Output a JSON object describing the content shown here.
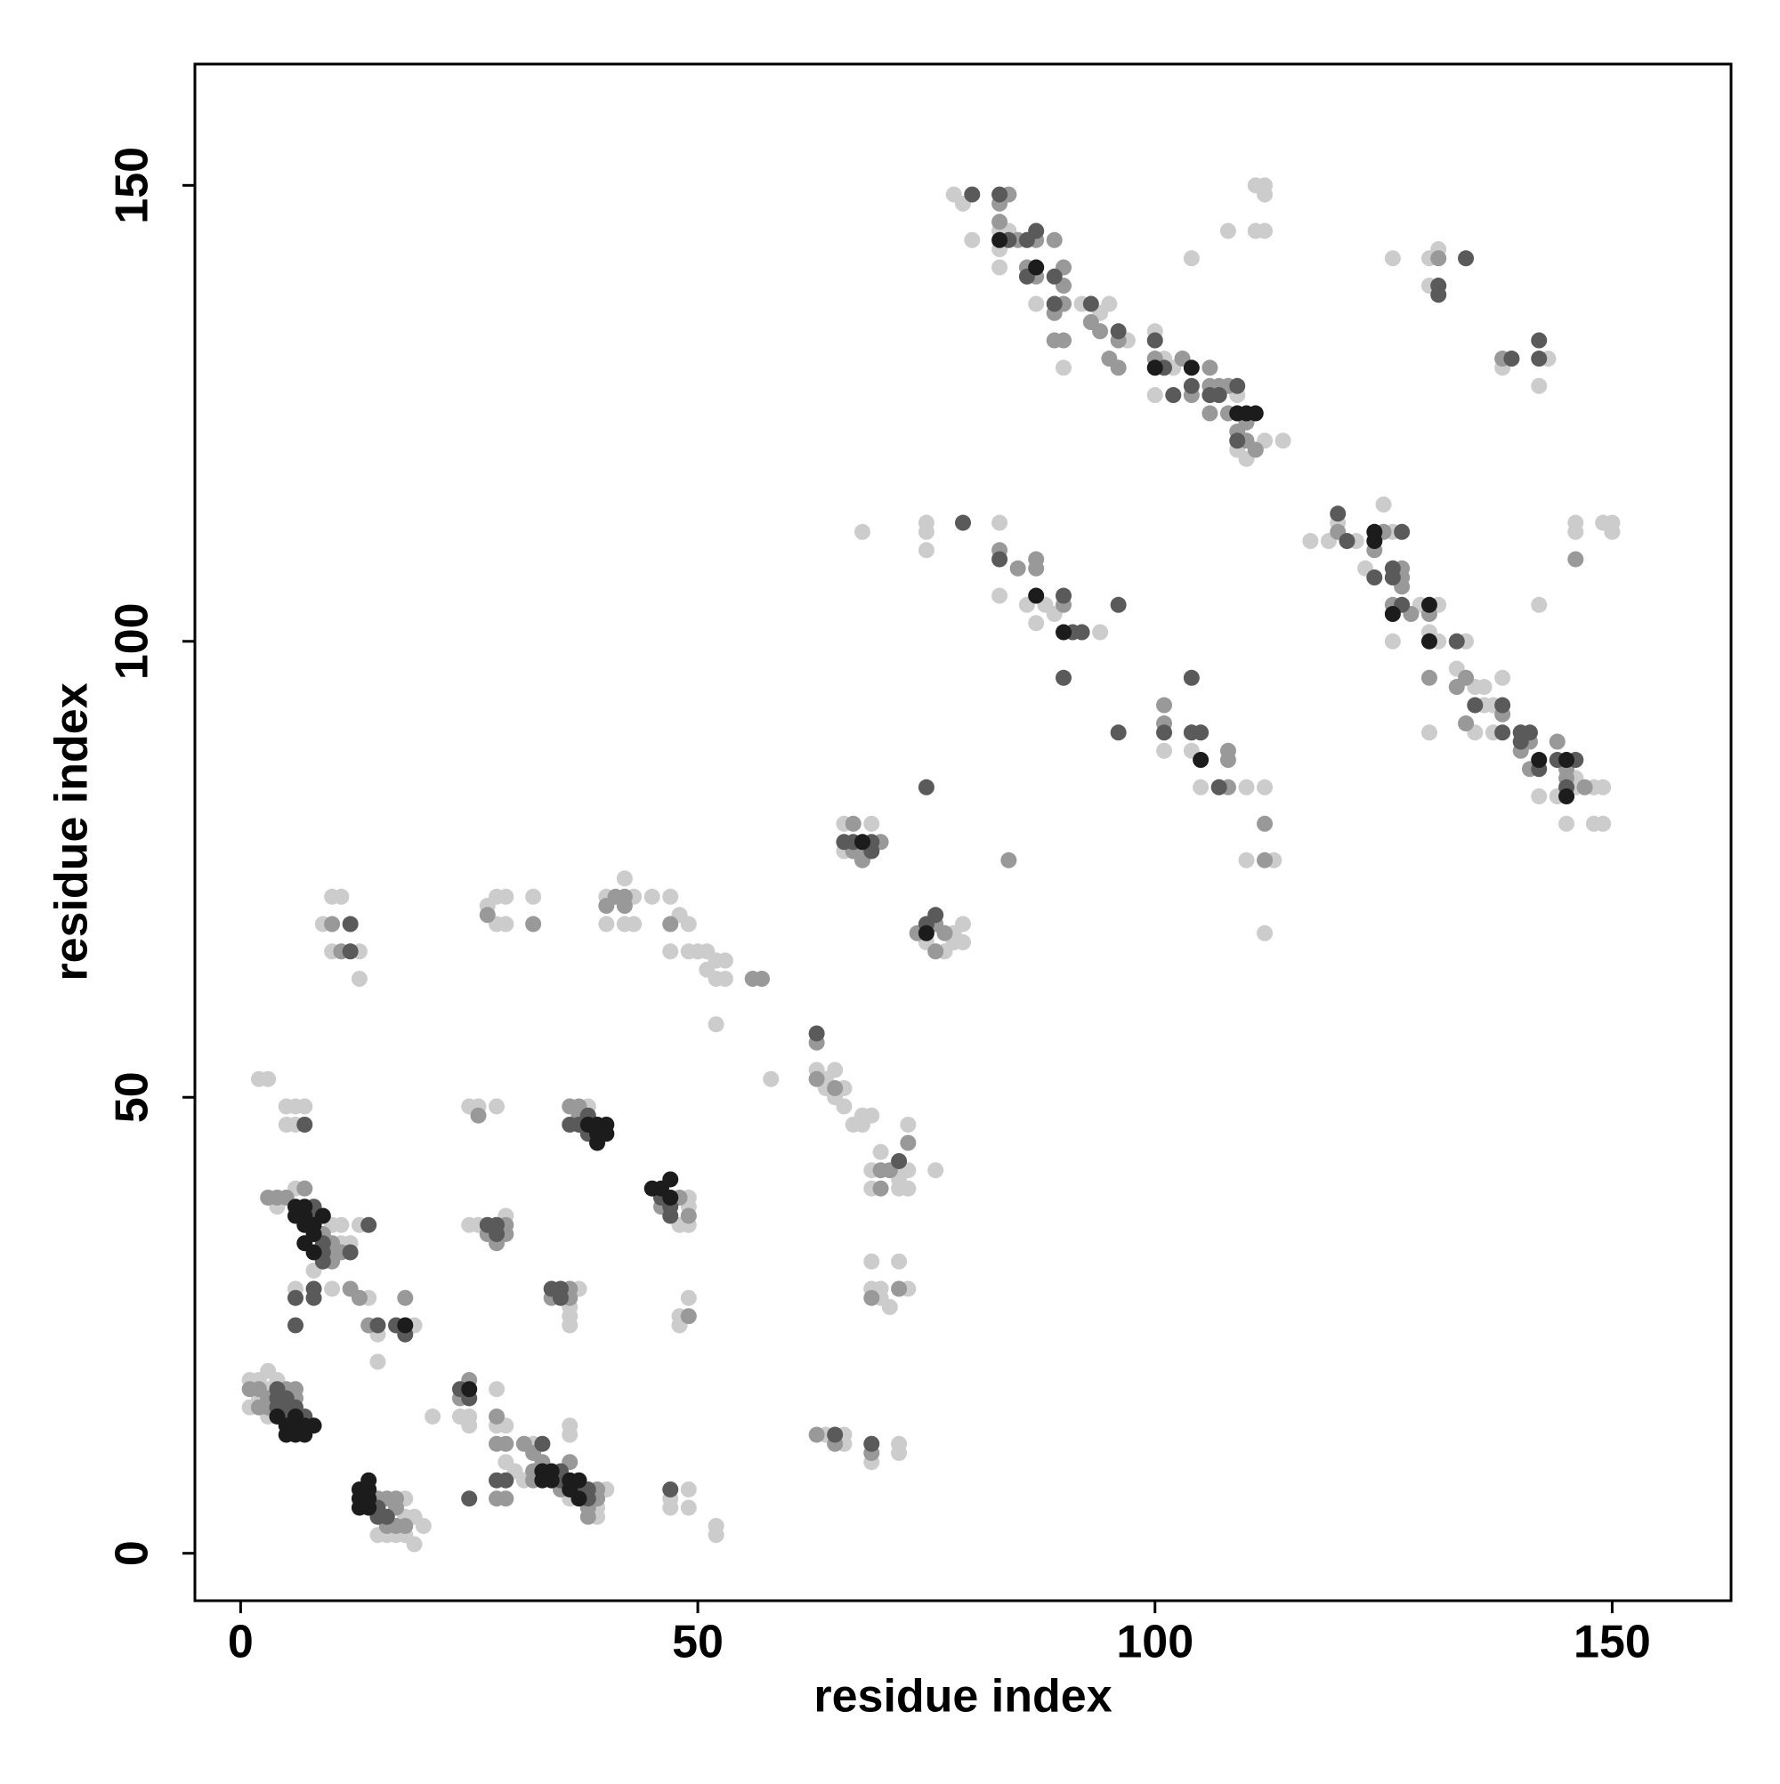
{
  "chart_data": {
    "type": "scatter",
    "xlabel": "residue index",
    "ylabel": "residue index",
    "xlim": [
      -5,
      163
    ],
    "ylim": [
      -5.2,
      163.3
    ],
    "xticks": [
      0,
      50,
      100,
      150
    ],
    "yticks": [
      0,
      50,
      100,
      150
    ],
    "series": [
      {
        "color": "#cccccc",
        "x": [
          78,
          79,
          80,
          83,
          84,
          83,
          83,
          87,
          92,
          94,
          95,
          97,
          90,
          100,
          101,
          102,
          100,
          109,
          110,
          112,
          109,
          114,
          108,
          111,
          112,
          111,
          112,
          112,
          104,
          126,
          130,
          131,
          130,
          138,
          143,
          142,
          117,
          119,
          120,
          122,
          123,
          126,
          125,
          126,
          129,
          131,
          130,
          131,
          130,
          134,
          133,
          135,
          136,
          135,
          136,
          137,
          137,
          138,
          146,
          146,
          144,
          142,
          148,
          149,
          149,
          148,
          145,
          146,
          146,
          150,
          150,
          149,
          142,
          68,
          75,
          75,
          75,
          83,
          83,
          86,
          87,
          88,
          94,
          89,
          101,
          104,
          105,
          110,
          112,
          110,
          113,
          112,
          66,
          69,
          66,
          79,
          78,
          75,
          78,
          79,
          77,
          10,
          11,
          9,
          13,
          10,
          13,
          27,
          28,
          29,
          32,
          28,
          29,
          40,
          43,
          42,
          40,
          42,
          43,
          45,
          47,
          48,
          49,
          47,
          49,
          50,
          51,
          52,
          53,
          51,
          52,
          53,
          52,
          63,
          64,
          65,
          64,
          66,
          65,
          66,
          68,
          68,
          69,
          73,
          69,
          72,
          73,
          69,
          72,
          73,
          72,
          58,
          76,
          67,
          70,
          69,
          72,
          69,
          70,
          73,
          70,
          71,
          64,
          66,
          66,
          72,
          72,
          69,
          2,
          3,
          5,
          6,
          7,
          5,
          6,
          25,
          26,
          28,
          38,
          49,
          49,
          48,
          49,
          6,
          4,
          10,
          11,
          11,
          12,
          13,
          8,
          25,
          26,
          29,
          6,
          10,
          14,
          15,
          19,
          15,
          37,
          36,
          36,
          36,
          49,
          48,
          48,
          1,
          2,
          3,
          4,
          3,
          2,
          1,
          3,
          28,
          24,
          25,
          25,
          28,
          29,
          21,
          29,
          32,
          36,
          36,
          40,
          36,
          39,
          39,
          30,
          31,
          47,
          49,
          47,
          49,
          52,
          52,
          18,
          19,
          20,
          15,
          16,
          17,
          18,
          19,
          18
        ],
        "y": [
          149,
          148,
          144,
          145,
          145,
          143,
          141,
          137,
          137,
          136,
          137,
          133,
          130,
          134,
          131,
          130,
          127,
          127,
          120,
          122,
          121,
          122,
          145,
          145,
          145,
          150,
          150,
          149,
          142,
          142,
          142,
          143,
          139,
          130,
          131,
          128,
          111,
          111,
          113,
          111,
          108,
          112,
          115,
          100,
          104,
          104,
          101,
          100,
          90,
          100,
          97,
          95,
          93,
          90,
          95,
          93,
          90,
          96,
          85,
          84,
          83,
          83,
          84,
          84,
          80,
          80,
          80,
          113,
          112,
          113,
          112,
          113,
          104,
          112,
          113,
          112,
          110,
          113,
          105,
          104,
          102,
          104,
          101,
          103,
          88,
          88,
          84,
          84,
          84,
          76,
          76,
          68,
          80,
          80,
          77,
          69,
          68,
          67,
          67,
          67,
          66,
          72,
          72,
          69,
          66,
          66,
          63,
          71,
          72,
          72,
          72,
          69,
          69,
          72,
          72,
          74,
          69,
          69,
          69,
          72,
          72,
          70,
          69,
          66,
          66,
          66,
          66,
          65,
          65,
          64,
          63,
          63,
          58,
          53,
          52,
          53,
          51,
          51,
          50,
          49,
          48,
          47,
          48,
          47,
          42,
          42,
          42,
          40,
          40,
          40,
          41,
          52,
          42,
          47,
          44,
          32,
          32,
          29,
          29,
          29,
          28,
          27,
          13,
          13,
          12,
          12,
          11,
          10,
          52,
          52,
          49,
          49,
          49,
          47,
          47,
          49,
          49,
          49,
          49,
          39,
          38,
          36,
          36,
          40,
          38,
          36,
          36,
          34,
          34,
          36,
          31,
          36,
          36,
          37,
          29,
          29,
          28,
          24,
          25,
          21,
          29,
          27,
          26,
          25,
          28,
          26,
          25,
          19,
          19,
          20,
          19,
          18,
          17,
          16,
          15,
          18,
          15,
          15,
          14,
          14,
          14,
          15,
          10,
          12,
          13,
          14,
          7,
          6,
          5,
          4,
          9,
          8,
          6,
          7,
          5,
          5,
          3,
          2,
          6,
          4,
          3,
          2,
          2,
          2,
          2,
          1,
          4
        ]
      },
      {
        "color": "#999999",
        "x": [
          83,
          84,
          83,
          85,
          87,
          86,
          87,
          89,
          90,
          90,
          90,
          89,
          93,
          94,
          96,
          95,
          89,
          90,
          96,
          100,
          103,
          106,
          104,
          106,
          107,
          108,
          106,
          108,
          110,
          109,
          110,
          111,
          131,
          138,
          120,
          124,
          125,
          127,
          127,
          127,
          126,
          128,
          130,
          130,
          134,
          133,
          134,
          138,
          141,
          140,
          141,
          145,
          145,
          147,
          146,
          144,
          83,
          85,
          87,
          87,
          90,
          101,
          101,
          108,
          108,
          108,
          112,
          112,
          84,
          67,
          67,
          68,
          68,
          70,
          74,
          76,
          77,
          76,
          10,
          11,
          27,
          32,
          41,
          42,
          40,
          42,
          47,
          56,
          57,
          63,
          63,
          65,
          73,
          70,
          70,
          71,
          72,
          69,
          63,
          65,
          69,
          26,
          36,
          37,
          37,
          48,
          46,
          49,
          3,
          4,
          5,
          7,
          9,
          10,
          10,
          11,
          10,
          29,
          27,
          29,
          28,
          12,
          13,
          14,
          18,
          36,
          34,
          36,
          49,
          1,
          2,
          5,
          6,
          3,
          6,
          2,
          3,
          25,
          24,
          28,
          29,
          28,
          28,
          29,
          31,
          32,
          33,
          32,
          36,
          32,
          35,
          39,
          39,
          38,
          38,
          15,
          16,
          17,
          17,
          16,
          17,
          18
        ],
        "y": [
          148,
          149,
          146,
          144,
          144,
          141,
          140,
          144,
          141,
          139,
          137,
          136,
          135,
          134,
          133,
          131,
          133,
          133,
          130,
          131,
          131,
          130,
          127,
          128,
          128,
          128,
          125,
          125,
          124,
          123,
          122,
          121,
          142,
          131,
          112,
          110,
          112,
          108,
          107,
          106,
          104,
          103,
          103,
          96,
          96,
          95,
          91,
          92,
          89,
          88,
          86,
          86,
          85,
          84,
          109,
          89,
          110,
          108,
          109,
          108,
          104,
          93,
          91,
          88,
          87,
          84,
          80,
          76,
          76,
          80,
          77,
          77,
          76,
          78,
          68,
          69,
          68,
          66,
          69,
          66,
          70,
          69,
          72,
          72,
          71,
          71,
          69,
          63,
          63,
          56,
          52,
          51,
          45,
          42,
          40,
          42,
          29,
          28,
          13,
          12,
          11,
          48,
          49,
          49,
          48,
          39,
          38,
          37,
          39,
          39,
          39,
          40,
          35,
          34,
          33,
          33,
          32,
          36,
          35,
          35,
          34,
          29,
          28,
          25,
          28,
          29,
          28,
          28,
          26,
          18,
          18,
          18,
          18,
          17,
          17,
          16,
          16,
          19,
          17,
          15,
          12,
          12,
          6,
          6,
          12,
          11,
          10,
          9,
          10,
          8,
          7,
          7,
          6,
          5,
          4,
          6,
          6,
          6,
          5,
          3,
          3,
          3
        ]
      },
      {
        "color": "#5a5a5a",
        "x": [
          80,
          83,
          84,
          86,
          87,
          86,
          89,
          89,
          93,
          96,
          100,
          101,
          102,
          104,
          106,
          107,
          109,
          109,
          134,
          131,
          131,
          139,
          142,
          142,
          120,
          121,
          124,
          127,
          126,
          126,
          127,
          133,
          135,
          138,
          138,
          140,
          140,
          141,
          142,
          144,
          146,
          145,
          79,
          83,
          90,
          91,
          92,
          96,
          90,
          96,
          101,
          104,
          104,
          105,
          107,
          75,
          66,
          67,
          69,
          69,
          75,
          76,
          12,
          12,
          63,
          72,
          65,
          69,
          7,
          38,
          36,
          37,
          38,
          46,
          47,
          47,
          8,
          8,
          9,
          9,
          12,
          14,
          9,
          27,
          28,
          28,
          6,
          8,
          8,
          6,
          15,
          17,
          18,
          34,
          35,
          35,
          4,
          4,
          5,
          4,
          5,
          6,
          5,
          7,
          24,
          25,
          29,
          28,
          25,
          33,
          35,
          35,
          37,
          38,
          38,
          47,
          15,
          15,
          16
        ],
        "y": [
          149,
          149,
          144,
          144,
          145,
          140,
          140,
          137,
          137,
          134,
          133,
          130,
          127,
          128,
          127,
          127,
          128,
          122,
          142,
          139,
          138,
          131,
          133,
          131,
          114,
          111,
          107,
          112,
          108,
          107,
          104,
          100,
          93,
          93,
          90,
          90,
          89,
          90,
          86,
          87,
          87,
          84,
          113,
          109,
          105,
          101,
          101,
          104,
          96,
          90,
          90,
          96,
          90,
          90,
          84,
          84,
          78,
          78,
          78,
          77,
          69,
          70,
          69,
          66,
          57,
          43,
          13,
          12,
          47,
          48,
          47,
          47,
          46,
          39,
          38,
          37,
          38,
          37,
          34,
          33,
          33,
          36,
          32,
          36,
          36,
          35,
          28,
          29,
          28,
          25,
          25,
          25,
          24,
          29,
          29,
          28,
          18,
          17,
          17,
          16,
          16,
          16,
          15,
          15,
          18,
          17,
          8,
          8,
          6,
          12,
          9,
          8,
          7,
          7,
          6,
          7,
          5,
          4,
          4
        ]
      },
      {
        "color": "#1c1c1c",
        "x": [
          83,
          87,
          100,
          104,
          109,
          110,
          111,
          124,
          124,
          126,
          130,
          130,
          142,
          145,
          145,
          87,
          90,
          105,
          68,
          75,
          38,
          39,
          40,
          39,
          40,
          39,
          45,
          46,
          47,
          47,
          6,
          7,
          9,
          6,
          7,
          7,
          8,
          8,
          7,
          8,
          18,
          4,
          6,
          5,
          6,
          7,
          8,
          5,
          6,
          7,
          25,
          33,
          34,
          33,
          34,
          36,
          37,
          36,
          37,
          14,
          13,
          14,
          13,
          14,
          13,
          14
        ],
        "y": [
          144,
          141,
          130,
          130,
          125,
          125,
          125,
          112,
          111,
          103,
          104,
          100,
          87,
          87,
          83,
          105,
          101,
          87,
          78,
          68,
          47,
          47,
          47,
          46,
          46,
          45,
          40,
          40,
          41,
          39,
          38,
          38,
          37,
          37,
          37,
          36,
          36,
          35,
          34,
          33,
          25,
          15,
          15,
          14,
          14,
          14,
          14,
          13,
          13,
          13,
          18,
          9,
          9,
          8,
          8,
          8,
          8,
          7,
          6,
          8,
          7,
          7,
          6,
          6,
          5,
          5
        ]
      }
    ]
  }
}
